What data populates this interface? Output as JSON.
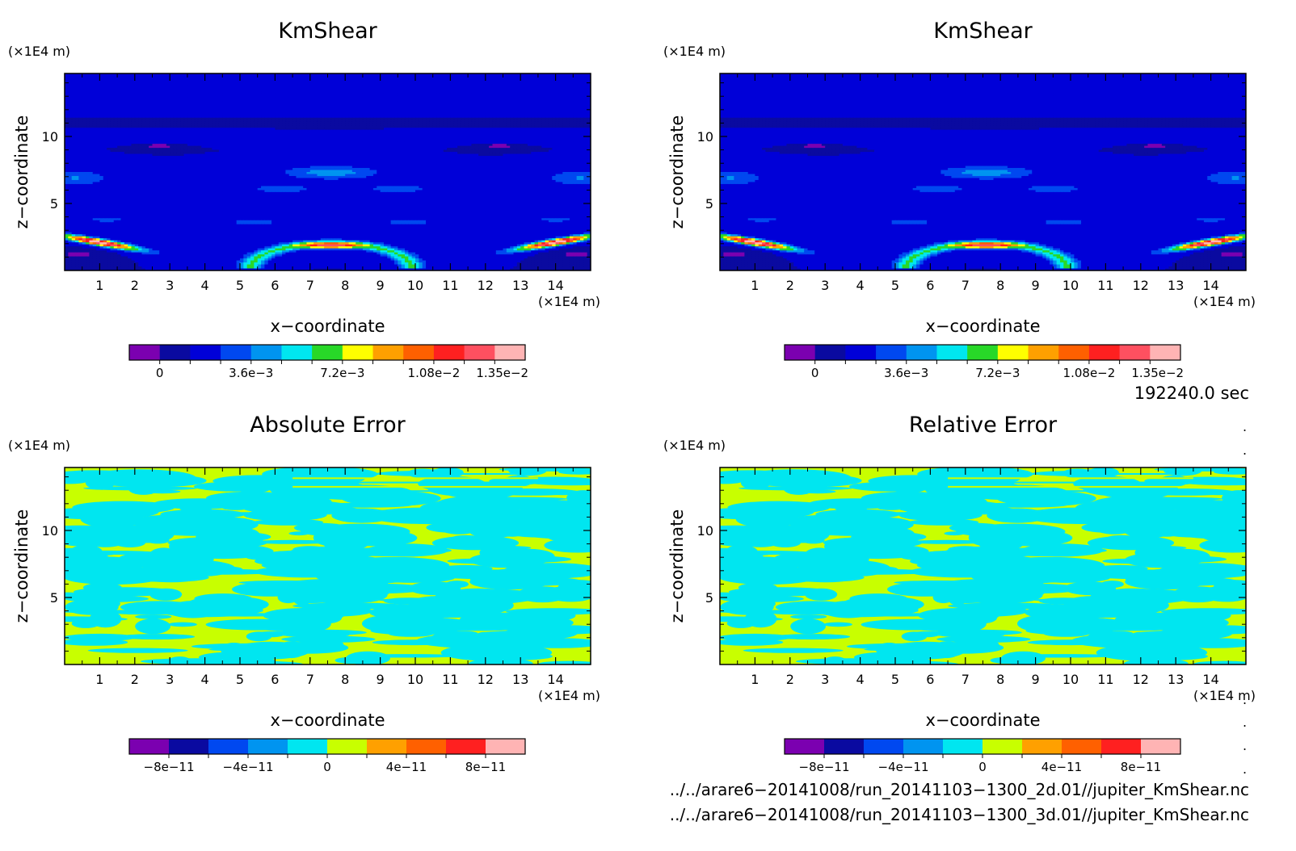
{
  "chart_data": [
    {
      "type": "heatmap",
      "title": "KmShear",
      "xlabel": "x−coordinate",
      "ylabel": "z−coordinate",
      "x_unit": "(×1E4 m)",
      "y_unit": "(×1E4 m)",
      "xlim": [
        0,
        15
      ],
      "ylim": [
        0,
        14.7
      ],
      "x_ticks": [
        "1",
        "2",
        "3",
        "4",
        "5",
        "6",
        "7",
        "8",
        "9",
        "10",
        "11",
        "12",
        "13",
        "14"
      ],
      "y_ticks": [
        "5",
        "10"
      ],
      "y_tick_values": [
        5,
        10
      ],
      "field": "kmshear",
      "colorbar": {
        "colors": [
          "#7b00b0",
          "#0a0aa0",
          "#0000d8",
          "#0048f0",
          "#0094f0",
          "#00e6f0",
          "#28d828",
          "#ffff00",
          "#ffa000",
          "#ff6000",
          "#ff2020",
          "#ff5060",
          "#ffb4b4"
        ],
        "labels": [
          "0",
          "3.6e−3",
          "7.2e−3",
          "1.08e−2",
          "1.35e−2"
        ],
        "label_values": [
          0,
          0.0036,
          0.0072,
          0.0108,
          0.0135
        ],
        "min": -0.0012,
        "max": 0.0144
      }
    },
    {
      "type": "heatmap",
      "title": "KmShear",
      "xlabel": "x−coordinate",
      "ylabel": "z−coordinate",
      "x_unit": "(×1E4 m)",
      "y_unit": "(×1E4 m)",
      "xlim": [
        0,
        15
      ],
      "ylim": [
        0,
        14.7
      ],
      "x_ticks": [
        "1",
        "2",
        "3",
        "4",
        "5",
        "6",
        "7",
        "8",
        "9",
        "10",
        "11",
        "12",
        "13",
        "14"
      ],
      "y_ticks": [
        "5",
        "10"
      ],
      "y_tick_values": [
        5,
        10
      ],
      "field": "kmshear",
      "colorbar": {
        "colors": [
          "#7b00b0",
          "#0a0aa0",
          "#0000d8",
          "#0048f0",
          "#0094f0",
          "#00e6f0",
          "#28d828",
          "#ffff00",
          "#ffa000",
          "#ff6000",
          "#ff2020",
          "#ff5060",
          "#ffb4b4"
        ],
        "labels": [
          "0",
          "3.6e−3",
          "7.2e−3",
          "1.08e−2",
          "1.35e−2"
        ],
        "label_values": [
          0,
          0.0036,
          0.0072,
          0.0108,
          0.0135
        ],
        "min": -0.0012,
        "max": 0.0144
      }
    },
    {
      "type": "heatmap",
      "title": "Absolute Error",
      "xlabel": "x−coordinate",
      "ylabel": "z−coordinate",
      "x_unit": "(×1E4 m)",
      "y_unit": "(×1E4 m)",
      "xlim": [
        0,
        15
      ],
      "ylim": [
        0,
        14.7
      ],
      "x_ticks": [
        "1",
        "2",
        "3",
        "4",
        "5",
        "6",
        "7",
        "8",
        "9",
        "10",
        "11",
        "12",
        "13",
        "14"
      ],
      "y_ticks": [
        "5",
        "10"
      ],
      "y_tick_values": [
        5,
        10
      ],
      "field": "error",
      "colorbar": {
        "colors": [
          "#7b00b0",
          "#0a0aa0",
          "#0048f0",
          "#0094f0",
          "#00e6f0",
          "#c8ff00",
          "#ffa000",
          "#ff6000",
          "#ff2020",
          "#ffb4b4"
        ],
        "labels": [
          "−8e−11",
          "−4e−11",
          "0",
          "4e−11",
          "8e−11"
        ],
        "label_values": [
          -8e-11,
          -4e-11,
          0,
          4e-11,
          8e-11
        ],
        "min": -1e-10,
        "max": 1e-10
      }
    },
    {
      "type": "heatmap",
      "title": "Relative Error",
      "xlabel": "x−coordinate",
      "ylabel": "z−coordinate",
      "x_unit": "(×1E4 m)",
      "y_unit": "(×1E4 m)",
      "xlim": [
        0,
        15
      ],
      "ylim": [
        0,
        14.7
      ],
      "x_ticks": [
        "1",
        "2",
        "3",
        "4",
        "5",
        "6",
        "7",
        "8",
        "9",
        "10",
        "11",
        "12",
        "13",
        "14"
      ],
      "y_ticks": [
        "5",
        "10"
      ],
      "y_tick_values": [
        5,
        10
      ],
      "field": "error",
      "colorbar": {
        "colors": [
          "#7b00b0",
          "#0a0aa0",
          "#0048f0",
          "#0094f0",
          "#00e6f0",
          "#c8ff00",
          "#ffa000",
          "#ff6000",
          "#ff2020",
          "#ffb4b4"
        ],
        "labels": [
          "−8e−11",
          "−4e−11",
          "0",
          "4e−11",
          "8e−11"
        ],
        "label_values": [
          -8e-11,
          -4e-11,
          0,
          4e-11,
          8e-11
        ],
        "min": -1e-10,
        "max": 1e-10
      }
    }
  ],
  "footer": {
    "time_label": "192240.0 sec",
    "file_1": "../../arare6−20141008/run_20141103−1300_2d.01//jupiter_KmShear.nc",
    "file_2": "../../arare6−20141008/run_20141103−1300_3d.01//jupiter_KmShear.nc"
  }
}
